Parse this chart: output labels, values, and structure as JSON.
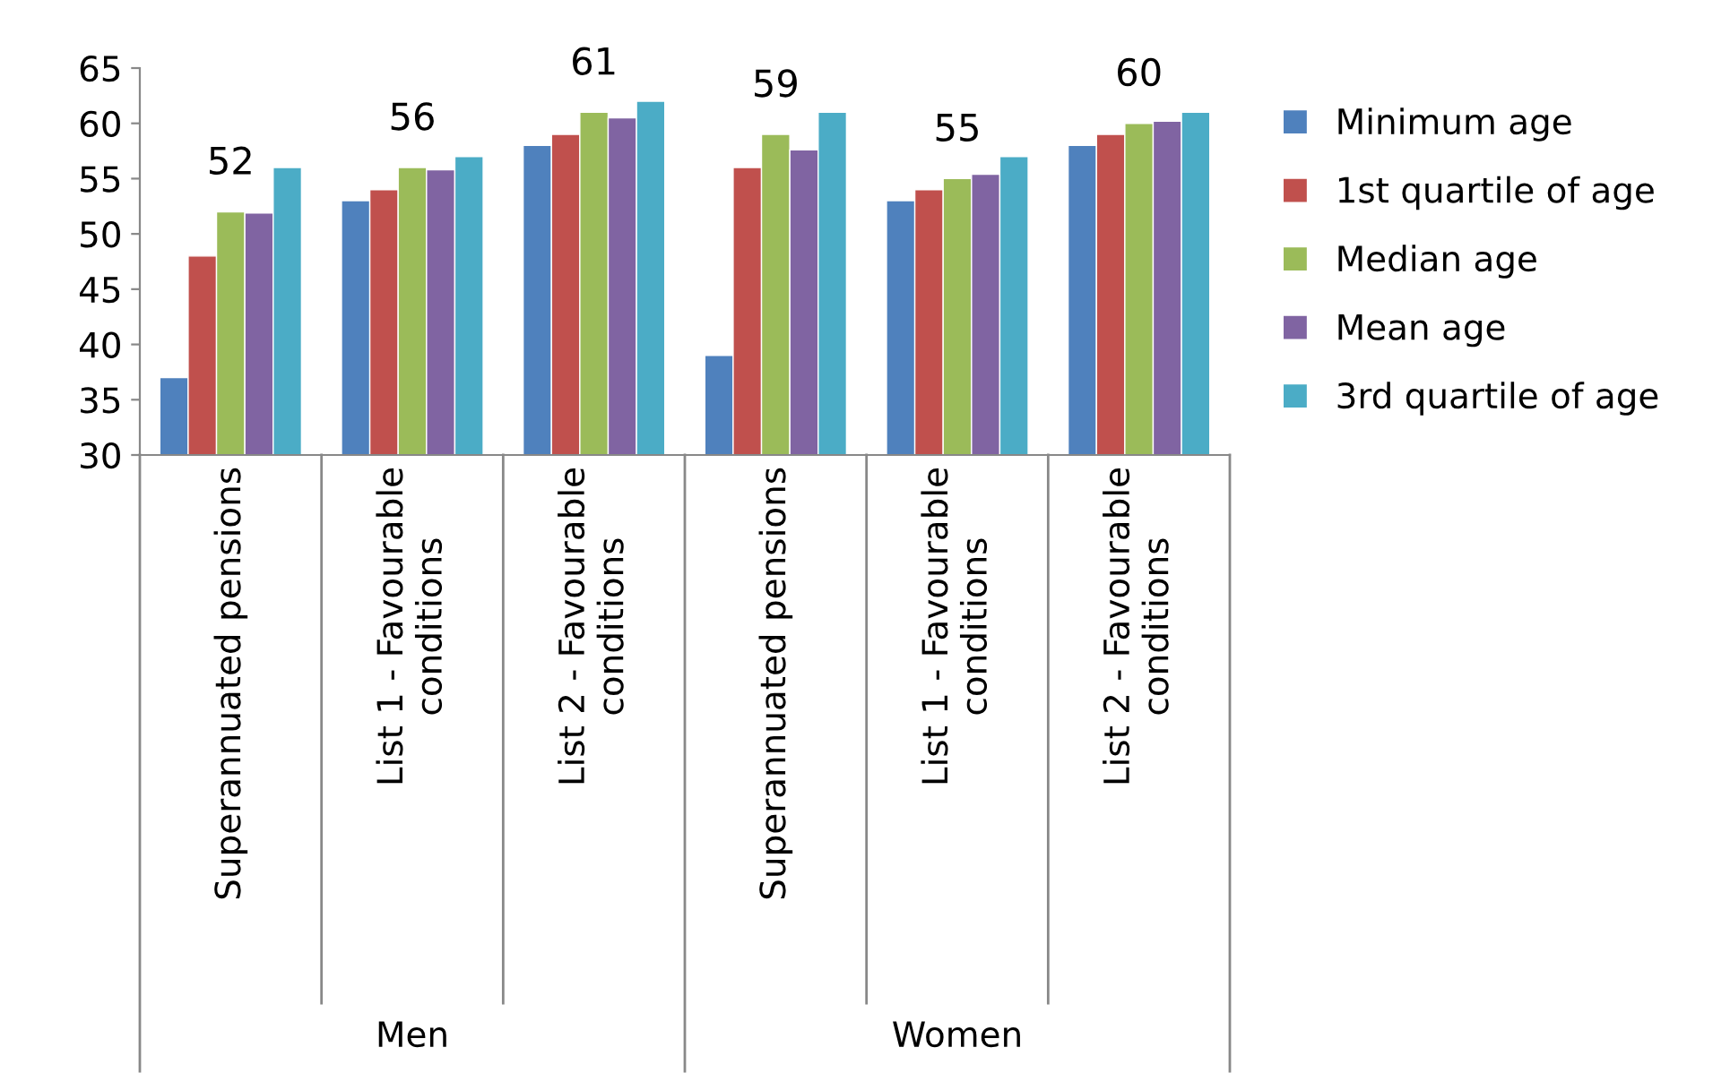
{
  "chart_data": {
    "type": "bar",
    "categories": [
      "Superannuated pensions",
      "List 1 - Favourable\nconditions",
      "List 2 - Favourable\nconditions",
      "Superannuated pensions",
      "List 1 - Favourable\nconditions",
      "List 2 - Favourable\nconditions"
    ],
    "series": [
      {
        "name": "Minimum age",
        "color": "#4f81bd",
        "values": [
          37,
          53,
          58,
          39,
          53,
          58
        ]
      },
      {
        "name": "1st quartile of age",
        "color": "#c0504d",
        "values": [
          48,
          54,
          59,
          56,
          54,
          59
        ]
      },
      {
        "name": "Median age",
        "color": "#9bbb59",
        "values": [
          52,
          56,
          61,
          59,
          55,
          60
        ],
        "value_labels": [
          "52",
          "56",
          "61",
          "59",
          "55",
          "60"
        ]
      },
      {
        "name": "Mean age",
        "color": "#8064a2",
        "values": [
          51.9,
          55.8,
          60.5,
          57.6,
          55.4,
          60.2
        ]
      },
      {
        "name": "3rd quartile of age",
        "color": "#4bacc6",
        "values": [
          56,
          57,
          62,
          61,
          57,
          61
        ]
      }
    ],
    "annotations": [
      "Men",
      "Women"
    ],
    "ylim": [
      30,
      65
    ],
    "yticks": [
      30,
      35,
      40,
      45,
      50,
      55,
      60,
      65
    ],
    "grid": false,
    "legend": "right"
  }
}
